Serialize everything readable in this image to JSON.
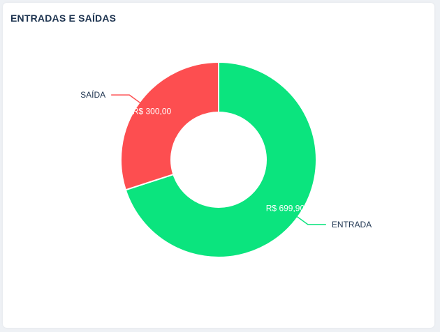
{
  "card": {
    "title": "ENTRADAS E SAÍDAS"
  },
  "chart_data": {
    "type": "pie",
    "style": "donut",
    "categories": [
      "ENTRADA",
      "SAÍDA"
    ],
    "values": [
      699.9,
      300.0
    ],
    "value_labels": [
      "R$ 699,90",
      "R$ 300,00"
    ],
    "colors": [
      "#0be47e",
      "#fd4e50"
    ],
    "title": "ENTRADAS E SAÍDAS"
  }
}
